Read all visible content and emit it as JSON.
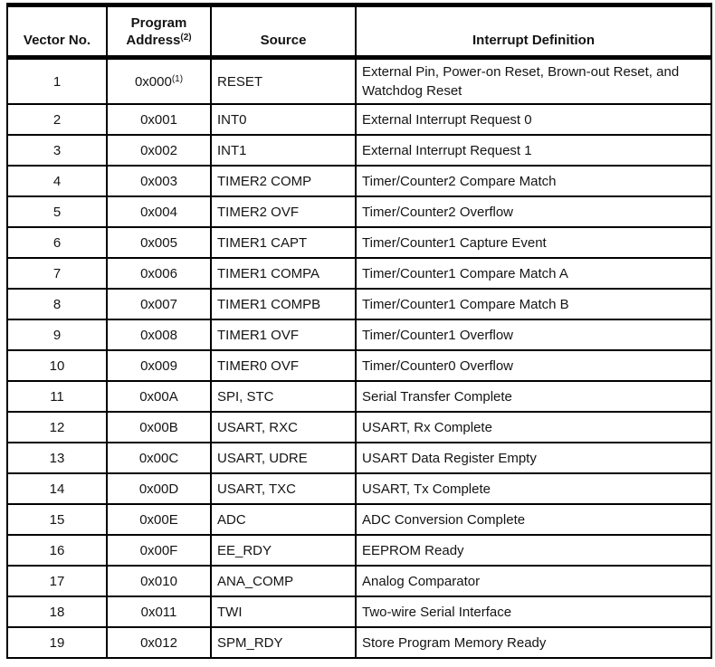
{
  "table": {
    "headers": {
      "vector_no": "Vector No.",
      "program_address_line1": "Program",
      "program_address_line2": "Address",
      "program_address_sup": "(2)",
      "source": "Source",
      "interrupt_definition": "Interrupt Definition"
    },
    "rows": [
      {
        "vector": "1",
        "address": "0x000",
        "address_sup": "(1)",
        "source": "RESET",
        "definition": "External Pin, Power-on Reset, Brown-out Reset, and Watchdog Reset"
      },
      {
        "vector": "2",
        "address": "0x001",
        "address_sup": "",
        "source": "INT0",
        "definition": "External Interrupt Request 0"
      },
      {
        "vector": "3",
        "address": "0x002",
        "address_sup": "",
        "source": "INT1",
        "definition": "External Interrupt Request 1"
      },
      {
        "vector": "4",
        "address": "0x003",
        "address_sup": "",
        "source": "TIMER2 COMP",
        "definition": "Timer/Counter2 Compare Match"
      },
      {
        "vector": "5",
        "address": "0x004",
        "address_sup": "",
        "source": "TIMER2 OVF",
        "definition": "Timer/Counter2 Overflow"
      },
      {
        "vector": "6",
        "address": "0x005",
        "address_sup": "",
        "source": "TIMER1 CAPT",
        "definition": "Timer/Counter1 Capture Event"
      },
      {
        "vector": "7",
        "address": "0x006",
        "address_sup": "",
        "source": "TIMER1 COMPA",
        "definition": "Timer/Counter1 Compare Match A"
      },
      {
        "vector": "8",
        "address": "0x007",
        "address_sup": "",
        "source": "TIMER1 COMPB",
        "definition": "Timer/Counter1 Compare Match B"
      },
      {
        "vector": "9",
        "address": "0x008",
        "address_sup": "",
        "source": "TIMER1 OVF",
        "definition": "Timer/Counter1 Overflow"
      },
      {
        "vector": "10",
        "address": "0x009",
        "address_sup": "",
        "source": "TIMER0 OVF",
        "definition": "Timer/Counter0 Overflow"
      },
      {
        "vector": "11",
        "address": "0x00A",
        "address_sup": "",
        "source": "SPI, STC",
        "definition": "Serial Transfer Complete"
      },
      {
        "vector": "12",
        "address": "0x00B",
        "address_sup": "",
        "source": "USART, RXC",
        "definition": "USART, Rx Complete"
      },
      {
        "vector": "13",
        "address": "0x00C",
        "address_sup": "",
        "source": "USART, UDRE",
        "definition": "USART Data Register Empty"
      },
      {
        "vector": "14",
        "address": "0x00D",
        "address_sup": "",
        "source": "USART, TXC",
        "definition": "USART, Tx Complete"
      },
      {
        "vector": "15",
        "address": "0x00E",
        "address_sup": "",
        "source": "ADC",
        "definition": "ADC Conversion Complete"
      },
      {
        "vector": "16",
        "address": "0x00F",
        "address_sup": "",
        "source": "EE_RDY",
        "definition": "EEPROM Ready"
      },
      {
        "vector": "17",
        "address": "0x010",
        "address_sup": "",
        "source": "ANA_COMP",
        "definition": "Analog Comparator"
      },
      {
        "vector": "18",
        "address": "0x011",
        "address_sup": "",
        "source": "TWI",
        "definition": "Two-wire Serial Interface"
      },
      {
        "vector": "19",
        "address": "0x012",
        "address_sup": "",
        "source": "SPM_RDY",
        "definition": "Store Program Memory Ready"
      }
    ],
    "colors": {
      "border": "#000000",
      "text": "#141414",
      "background": "#ffffff"
    }
  }
}
